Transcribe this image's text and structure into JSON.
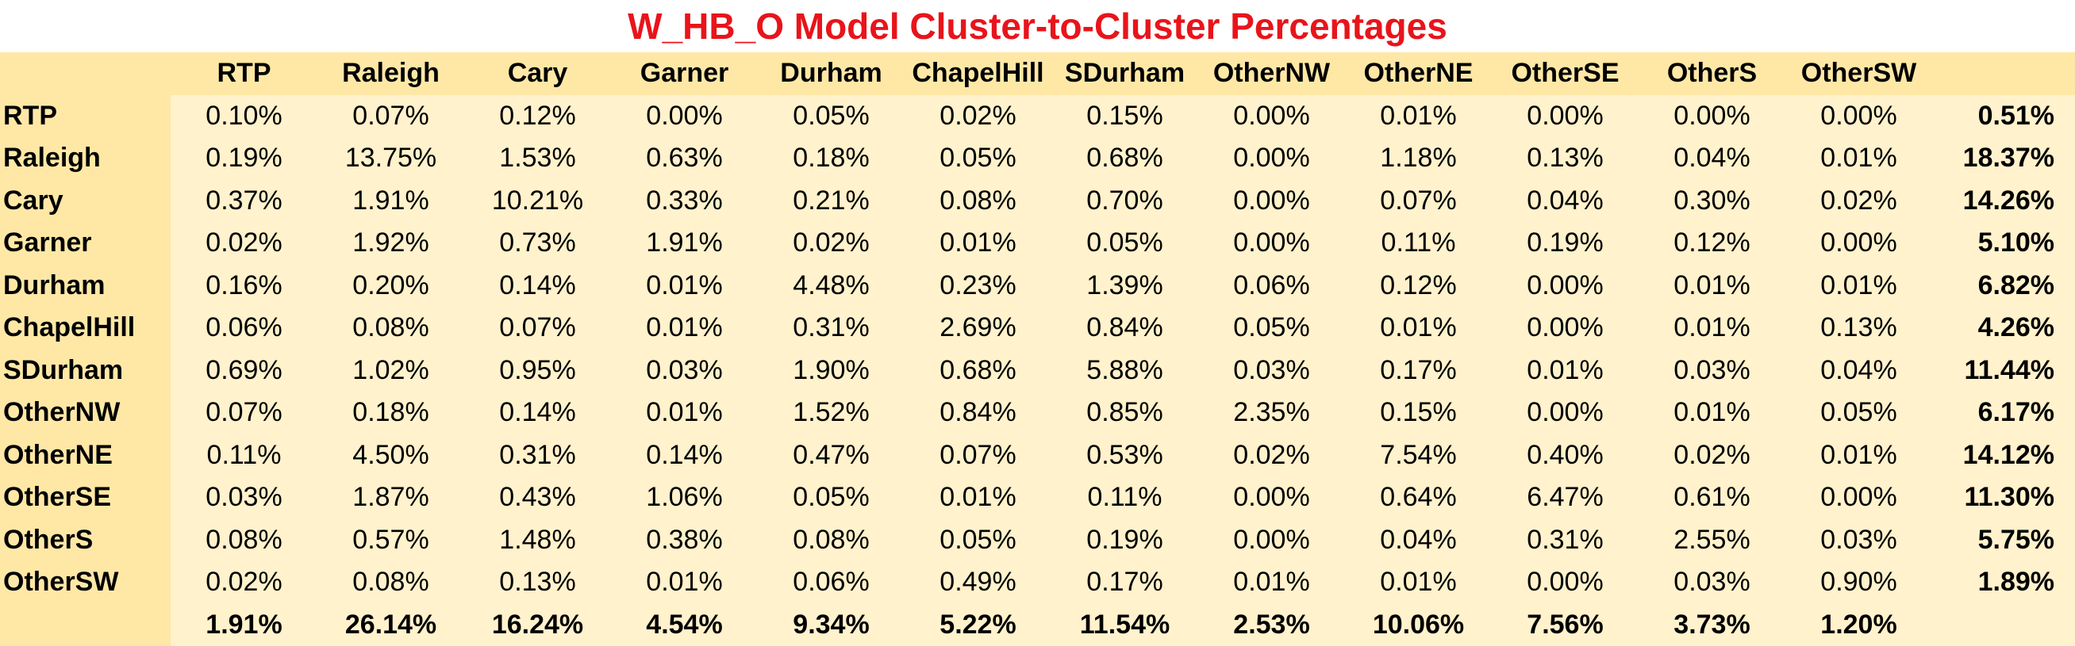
{
  "chart_data": {
    "type": "table",
    "title": "W_HB_O Model Cluster-to-Cluster Percentages",
    "columns": [
      "RTP",
      "Raleigh",
      "Cary",
      "Garner",
      "Durham",
      "ChapelHill",
      "SDurham",
      "OtherNW",
      "OtherNE",
      "OtherSE",
      "OtherS",
      "OtherSW"
    ],
    "rows": [
      {
        "label": "RTP",
        "values": [
          "0.10%",
          "0.07%",
          "0.12%",
          "0.00%",
          "0.05%",
          "0.02%",
          "0.15%",
          "0.00%",
          "0.01%",
          "0.00%",
          "0.00%",
          "0.00%"
        ],
        "total": "0.51%"
      },
      {
        "label": "Raleigh",
        "values": [
          "0.19%",
          "13.75%",
          "1.53%",
          "0.63%",
          "0.18%",
          "0.05%",
          "0.68%",
          "0.00%",
          "1.18%",
          "0.13%",
          "0.04%",
          "0.01%"
        ],
        "total": "18.37%"
      },
      {
        "label": "Cary",
        "values": [
          "0.37%",
          "1.91%",
          "10.21%",
          "0.33%",
          "0.21%",
          "0.08%",
          "0.70%",
          "0.00%",
          "0.07%",
          "0.04%",
          "0.30%",
          "0.02%"
        ],
        "total": "14.26%"
      },
      {
        "label": "Garner",
        "values": [
          "0.02%",
          "1.92%",
          "0.73%",
          "1.91%",
          "0.02%",
          "0.01%",
          "0.05%",
          "0.00%",
          "0.11%",
          "0.19%",
          "0.12%",
          "0.00%"
        ],
        "total": "5.10%"
      },
      {
        "label": "Durham",
        "values": [
          "0.16%",
          "0.20%",
          "0.14%",
          "0.01%",
          "4.48%",
          "0.23%",
          "1.39%",
          "0.06%",
          "0.12%",
          "0.00%",
          "0.01%",
          "0.01%"
        ],
        "total": "6.82%"
      },
      {
        "label": "ChapelHill",
        "values": [
          "0.06%",
          "0.08%",
          "0.07%",
          "0.01%",
          "0.31%",
          "2.69%",
          "0.84%",
          "0.05%",
          "0.01%",
          "0.00%",
          "0.01%",
          "0.13%"
        ],
        "total": "4.26%"
      },
      {
        "label": "SDurham",
        "values": [
          "0.69%",
          "1.02%",
          "0.95%",
          "0.03%",
          "1.90%",
          "0.68%",
          "5.88%",
          "0.03%",
          "0.17%",
          "0.01%",
          "0.03%",
          "0.04%"
        ],
        "total": "11.44%"
      },
      {
        "label": "OtherNW",
        "values": [
          "0.07%",
          "0.18%",
          "0.14%",
          "0.01%",
          "1.52%",
          "0.84%",
          "0.85%",
          "2.35%",
          "0.15%",
          "0.00%",
          "0.01%",
          "0.05%"
        ],
        "total": "6.17%"
      },
      {
        "label": "OtherNE",
        "values": [
          "0.11%",
          "4.50%",
          "0.31%",
          "0.14%",
          "0.47%",
          "0.07%",
          "0.53%",
          "0.02%",
          "7.54%",
          "0.40%",
          "0.02%",
          "0.01%"
        ],
        "total": "14.12%"
      },
      {
        "label": "OtherSE",
        "values": [
          "0.03%",
          "1.87%",
          "0.43%",
          "1.06%",
          "0.05%",
          "0.01%",
          "0.11%",
          "0.00%",
          "0.64%",
          "6.47%",
          "0.61%",
          "0.00%"
        ],
        "total": "11.30%"
      },
      {
        "label": "OtherS",
        "values": [
          "0.08%",
          "0.57%",
          "1.48%",
          "0.38%",
          "0.08%",
          "0.05%",
          "0.19%",
          "0.00%",
          "0.04%",
          "0.31%",
          "2.55%",
          "0.03%"
        ],
        "total": "5.75%"
      },
      {
        "label": "OtherSW",
        "values": [
          "0.02%",
          "0.08%",
          "0.13%",
          "0.01%",
          "0.06%",
          "0.49%",
          "0.17%",
          "0.01%",
          "0.01%",
          "0.00%",
          "0.03%",
          "0.90%"
        ],
        "total": "1.89%"
      }
    ],
    "column_totals": [
      "1.91%",
      "26.14%",
      "16.24%",
      "4.54%",
      "9.34%",
      "5.22%",
      "11.54%",
      "2.53%",
      "10.06%",
      "7.56%",
      "3.73%",
      "1.20%"
    ],
    "colors": {
      "title": "#e8141b",
      "header_fill": "#ffe8a6",
      "cell_fill": "#fff2cc"
    }
  }
}
